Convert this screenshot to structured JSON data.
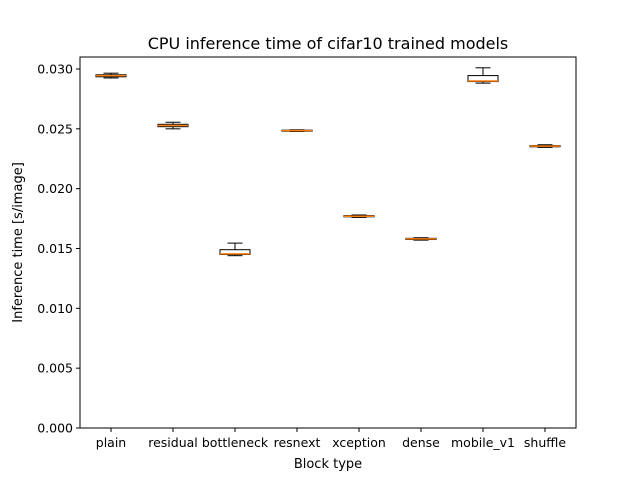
{
  "chart_data": {
    "type": "box",
    "title": "CPU inference time of cifar10 trained models",
    "xlabel": "Block type",
    "ylabel": "Inference time [s/image]",
    "ylim": [
      0.0,
      0.03
    ],
    "yticks": [
      "0.000",
      "0.005",
      "0.010",
      "0.015",
      "0.020",
      "0.025",
      "0.030"
    ],
    "categories": [
      "plain",
      "residual",
      "bottleneck",
      "resnext",
      "xception",
      "dense",
      "mobile_v1",
      "shuffle"
    ],
    "boxes": [
      {
        "whislo": 0.02925,
        "q1": 0.02935,
        "med": 0.02945,
        "q3": 0.02952,
        "whishi": 0.02965
      },
      {
        "whislo": 0.025,
        "q1": 0.02518,
        "med": 0.02528,
        "q3": 0.02538,
        "whishi": 0.02555
      },
      {
        "whislo": 0.0144,
        "q1": 0.0145,
        "med": 0.01455,
        "q3": 0.0149,
        "whishi": 0.01545
      },
      {
        "whislo": 0.02478,
        "q1": 0.0248,
        "med": 0.02485,
        "q3": 0.02489,
        "whishi": 0.02492
      },
      {
        "whislo": 0.0176,
        "q1": 0.01765,
        "med": 0.0177,
        "q3": 0.01775,
        "whishi": 0.0178
      },
      {
        "whislo": 0.0157,
        "q1": 0.01575,
        "med": 0.0158,
        "q3": 0.01585,
        "whishi": 0.0159
      },
      {
        "whislo": 0.02882,
        "q1": 0.02895,
        "med": 0.029,
        "q3": 0.02945,
        "whishi": 0.0301
      },
      {
        "whislo": 0.02345,
        "q1": 0.0235,
        "med": 0.02355,
        "q3": 0.0236,
        "whishi": 0.02367
      }
    ],
    "grid": false,
    "colors": {
      "median": "#ff7f0e",
      "box": "#000000"
    }
  }
}
